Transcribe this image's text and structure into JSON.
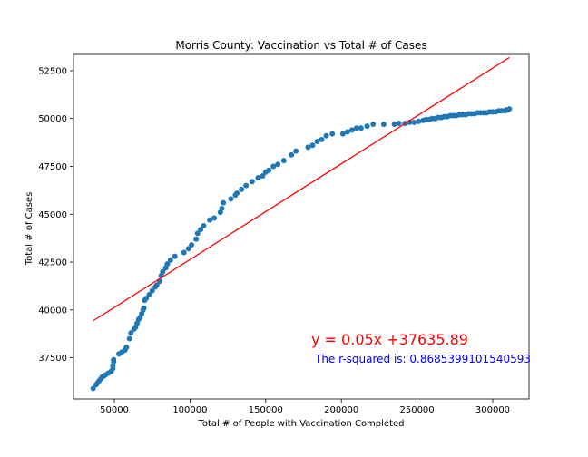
{
  "chart_data": {
    "type": "scatter",
    "title": "Morris County: Vaccination vs Total # of Cases",
    "xlabel": "Total # of People with Vaccination Completed",
    "ylabel": "Total # of Cases",
    "xlim": [
      23000,
      324000
    ],
    "ylim": [
      35350,
      53350
    ],
    "xticks": [
      50000,
      100000,
      150000,
      200000,
      250000,
      300000
    ],
    "yticks": [
      37500,
      40000,
      42500,
      45000,
      47500,
      50000,
      52500
    ],
    "grid": false,
    "series": [
      {
        "kind": "scatter",
        "color": "#1f77b4",
        "points": [
          [
            36000,
            35900
          ],
          [
            38000,
            36100
          ],
          [
            39000,
            36200
          ],
          [
            40000,
            36300
          ],
          [
            41000,
            36400
          ],
          [
            42000,
            36500
          ],
          [
            43000,
            36550
          ],
          [
            44000,
            36600
          ],
          [
            46000,
            36700
          ],
          [
            48000,
            36800
          ],
          [
            49000,
            36950
          ],
          [
            49000,
            37100
          ],
          [
            49500,
            37300
          ],
          [
            49500,
            37400
          ],
          [
            53000,
            37700
          ],
          [
            55000,
            37800
          ],
          [
            57000,
            37900
          ],
          [
            58000,
            38050
          ],
          [
            60000,
            38500
          ],
          [
            61000,
            38800
          ],
          [
            63000,
            39000
          ],
          [
            64000,
            39100
          ],
          [
            65000,
            39300
          ],
          [
            66000,
            39500
          ],
          [
            67000,
            39600
          ],
          [
            68000,
            39800
          ],
          [
            69000,
            40000
          ],
          [
            69500,
            40100
          ],
          [
            70000,
            40500
          ],
          [
            71000,
            40600
          ],
          [
            73000,
            40800
          ],
          [
            75000,
            41000
          ],
          [
            77000,
            41200
          ],
          [
            78000,
            41300
          ],
          [
            80000,
            41500
          ],
          [
            81000,
            41800
          ],
          [
            82000,
            42000
          ],
          [
            84000,
            42200
          ],
          [
            85000,
            42400
          ],
          [
            87000,
            42600
          ],
          [
            90000,
            42800
          ],
          [
            96000,
            43000
          ],
          [
            99000,
            43200
          ],
          [
            101000,
            43400
          ],
          [
            104000,
            43700
          ],
          [
            105000,
            44000
          ],
          [
            107000,
            44200
          ],
          [
            109000,
            44400
          ],
          [
            113000,
            44700
          ],
          [
            116000,
            44800
          ],
          [
            120000,
            45100
          ],
          [
            121000,
            45300
          ],
          [
            122000,
            45600
          ],
          [
            127000,
            45800
          ],
          [
            130000,
            46000
          ],
          [
            131000,
            46100
          ],
          [
            134000,
            46300
          ],
          [
            137000,
            46500
          ],
          [
            141000,
            46700
          ],
          [
            145000,
            46900
          ],
          [
            148000,
            47000
          ],
          [
            150000,
            47200
          ],
          [
            152000,
            47300
          ],
          [
            155000,
            47500
          ],
          [
            158000,
            47600
          ],
          [
            162000,
            47800
          ],
          [
            167000,
            48100
          ],
          [
            170000,
            48300
          ],
          [
            178000,
            48500
          ],
          [
            181000,
            48600
          ],
          [
            184000,
            48800
          ],
          [
            187000,
            48900
          ],
          [
            190000,
            49100
          ],
          [
            194000,
            49200
          ],
          [
            201000,
            49200
          ],
          [
            204000,
            49300
          ],
          [
            207000,
            49400
          ],
          [
            210000,
            49500
          ],
          [
            213000,
            49500
          ],
          [
            217000,
            49600
          ],
          [
            221000,
            49700
          ],
          [
            228000,
            49700
          ],
          [
            235000,
            49700
          ],
          [
            238000,
            49750
          ],
          [
            242000,
            49750
          ],
          [
            245000,
            49800
          ],
          [
            248000,
            49800
          ],
          [
            251000,
            49850
          ],
          [
            254000,
            49900
          ],
          [
            256000,
            49950
          ],
          [
            258000,
            49950
          ],
          [
            260000,
            50000
          ],
          [
            262000,
            50000
          ],
          [
            264000,
            50050
          ],
          [
            266000,
            50050
          ],
          [
            268000,
            50100
          ],
          [
            270000,
            50100
          ],
          [
            272000,
            50150
          ],
          [
            274000,
            50150
          ],
          [
            276000,
            50150
          ],
          [
            278000,
            50200
          ],
          [
            280000,
            50200
          ],
          [
            282000,
            50200
          ],
          [
            284000,
            50250
          ],
          [
            286000,
            50250
          ],
          [
            288000,
            50250
          ],
          [
            290000,
            50300
          ],
          [
            292000,
            50300
          ],
          [
            294000,
            50300
          ],
          [
            296000,
            50300
          ],
          [
            298000,
            50350
          ],
          [
            300000,
            50350
          ],
          [
            302000,
            50350
          ],
          [
            304000,
            50400
          ],
          [
            306000,
            50400
          ],
          [
            308000,
            50400
          ],
          [
            309000,
            50450
          ],
          [
            310000,
            50450
          ],
          [
            311000,
            50500
          ]
        ]
      },
      {
        "kind": "line",
        "name": "regression",
        "color": "#ff0000",
        "slope": 0.05,
        "intercept": 37635.89,
        "x": [
          36000,
          311000
        ]
      }
    ],
    "annotations": [
      {
        "id": "equation",
        "text": "y = 0.05x +37635.89",
        "color": "#ff0000"
      },
      {
        "id": "rsquared",
        "text": "The r-squared is: 0.8685399101540593",
        "color": "#0000ff"
      }
    ]
  }
}
